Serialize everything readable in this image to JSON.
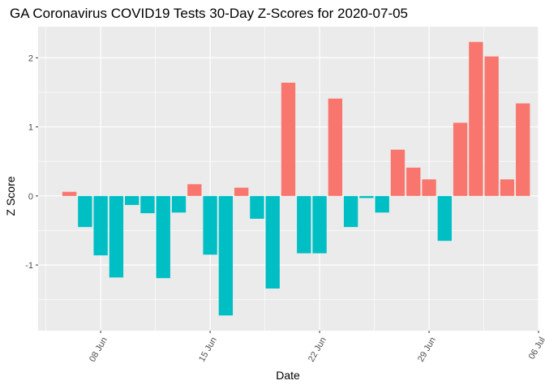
{
  "chart_data": {
    "type": "bar",
    "title": "GA Coronavirus COVID19 Tests 30-Day Z-Scores for 2020-07-05",
    "xlabel": "Date",
    "ylabel": "Z Score",
    "ylim": [
      -1.95,
      2.45
    ],
    "xlim": [
      "2020-06-04",
      "2020-07-06"
    ],
    "x_ticks": [
      "2020-06-08",
      "2020-06-15",
      "2020-06-22",
      "2020-06-29",
      "2020-07-06"
    ],
    "x_tick_labels": [
      "08 Jun",
      "15 Jun",
      "22 Jun",
      "29 Jun",
      "06 Jul"
    ],
    "y_ticks": [
      -1,
      0,
      1,
      2
    ],
    "y_tick_labels": [
      "-1",
      "0",
      "1",
      "2"
    ],
    "grid": true,
    "legend": "none",
    "colors": {
      "positive": "#F8766D",
      "negative": "#00BFC4",
      "panel": "#EBEBEB",
      "grid": "#FFFFFF"
    },
    "dates": [
      "2020-06-06",
      "2020-06-07",
      "2020-06-08",
      "2020-06-09",
      "2020-06-10",
      "2020-06-11",
      "2020-06-12",
      "2020-06-13",
      "2020-06-14",
      "2020-06-15",
      "2020-06-16",
      "2020-06-17",
      "2020-06-18",
      "2020-06-19",
      "2020-06-20",
      "2020-06-21",
      "2020-06-22",
      "2020-06-23",
      "2020-06-24",
      "2020-06-25",
      "2020-06-26",
      "2020-06-27",
      "2020-06-28",
      "2020-06-29",
      "2020-06-30",
      "2020-07-01",
      "2020-07-02",
      "2020-07-03",
      "2020-07-04",
      "2020-07-05"
    ],
    "values": [
      0.06,
      -0.45,
      -0.86,
      -1.18,
      -0.13,
      -0.25,
      -1.19,
      -0.24,
      0.17,
      -0.85,
      -1.73,
      0.12,
      -0.33,
      -1.34,
      1.64,
      -0.83,
      -0.83,
      1.41,
      -0.45,
      -0.03,
      -0.24,
      0.67,
      0.41,
      0.24,
      -0.65,
      1.06,
      2.23,
      2.02,
      0.24,
      1.34
    ]
  }
}
